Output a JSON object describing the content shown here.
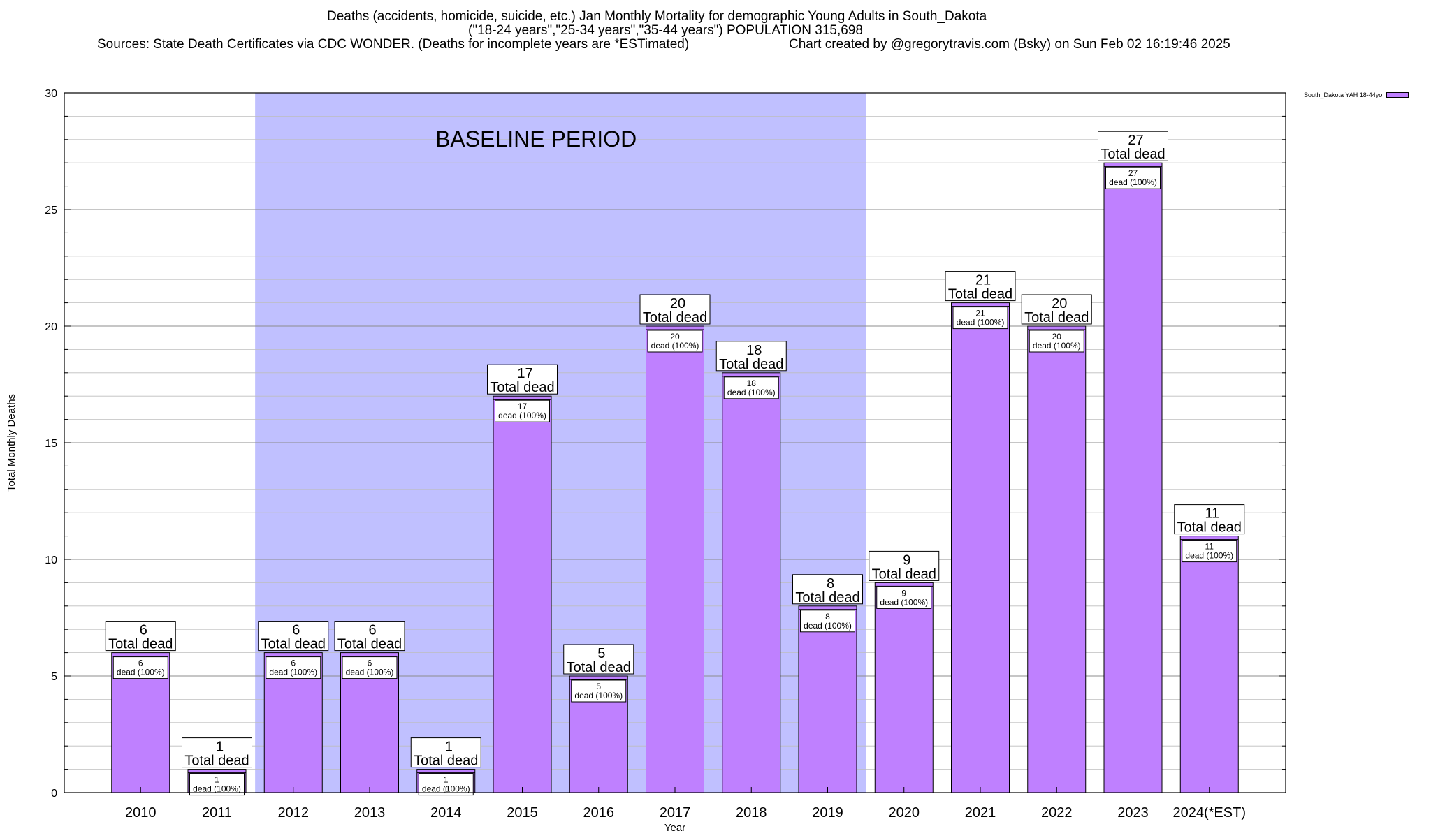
{
  "header": {
    "title_line1": "Deaths (accidents, homicide, suicide, etc.) Jan Monthly Mortality for demographic Young Adults in South_Dakota",
    "title_line2": "(\"18-24 years\",\"25-34 years\",\"35-44 years\") POPULATION 315,698",
    "sources": "Sources: State Death Certificates via CDC WONDER. (Deaths for incomplete years are *ESTimated)",
    "credit": "Chart created by @gregorytravis.com (Bsky) on Sun Feb 02 16:19:46 2025"
  },
  "chart_data": {
    "type": "bar",
    "xlabel": "Year",
    "ylabel": "Total Monthly Deaths",
    "ylim": [
      0,
      30
    ],
    "yticks": [
      0,
      5,
      10,
      15,
      20,
      25,
      30
    ],
    "grid": true,
    "legend_position": "top-right",
    "categories": [
      "2010",
      "2011",
      "2012",
      "2013",
      "2014",
      "2015",
      "2016",
      "2017",
      "2018",
      "2019",
      "2020",
      "2021",
      "2022",
      "2023",
      "2024(*EST)"
    ],
    "series": [
      {
        "name": "South_Dakota YAH 18-44yo",
        "color": "#bf80ff",
        "values": [
          6,
          1,
          6,
          6,
          1,
          17,
          5,
          20,
          18,
          8,
          9,
          21,
          20,
          27,
          11
        ]
      }
    ],
    "total_label_suffix": "Total dead",
    "inner_label_suffix": "dead (100%)",
    "annotation": {
      "text": "BASELINE PERIOD",
      "from": "2012",
      "to": "2019",
      "color": "#c0c0ff"
    }
  }
}
